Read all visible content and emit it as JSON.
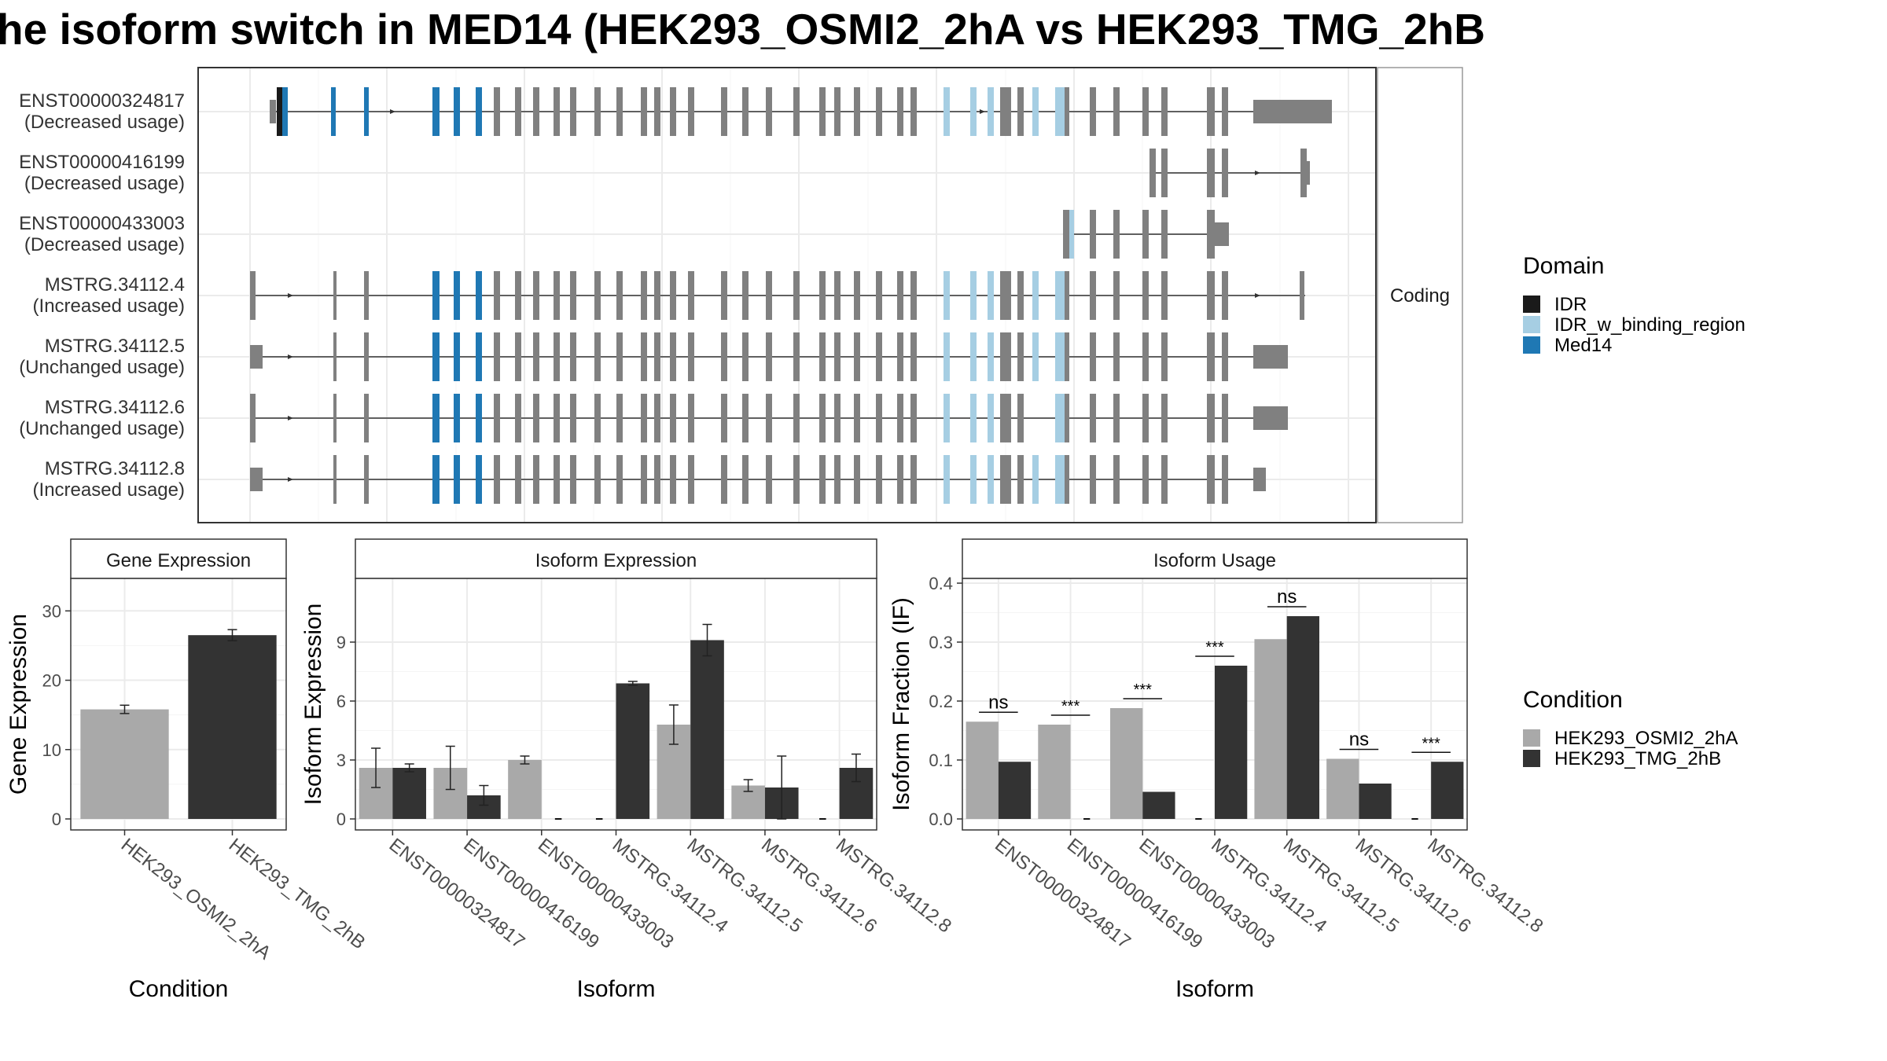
{
  "title": "he isoform switch in MED14 (HEK293_OSMI2_2hA vs HEK293_TMG_2hB",
  "colors": {
    "IDR": "#1a1a1a",
    "IDR_w_binding_region": "#a6cee3",
    "Med14": "#1f78b4",
    "noncoding": "#808080",
    "cond1": "#a9a9a9",
    "cond2": "#333333"
  },
  "domain_legend": {
    "title": "Domain",
    "items": [
      {
        "name": "IDR",
        "color": "#1a1a1a"
      },
      {
        "name": "IDR_w_binding_region",
        "color": "#a6cee3"
      },
      {
        "name": "Med14",
        "color": "#1f78b4"
      }
    ]
  },
  "condition_legend": {
    "title": "Condition",
    "items": [
      {
        "name": "HEK293_OSMI2_2hA",
        "color": "#a9a9a9"
      },
      {
        "name": "HEK293_TMG_2hB",
        "color": "#333333"
      }
    ]
  },
  "structure": {
    "strip_label": "Coding",
    "transcripts": [
      {
        "id": "ENST00000324817",
        "usage": "(Decreased usage)"
      },
      {
        "id": "ENST00000416199",
        "usage": "(Decreased usage)"
      },
      {
        "id": "ENST00000433003",
        "usage": "(Decreased usage)"
      },
      {
        "id": "MSTRG.34112.4",
        "usage": "(Increased usage)"
      },
      {
        "id": "MSTRG.34112.5",
        "usage": "(Unchanged usage)"
      },
      {
        "id": "MSTRG.34112.6",
        "usage": "(Unchanged usage)"
      },
      {
        "id": "MSTRG.34112.8",
        "usage": "(Increased usage)"
      }
    ]
  },
  "chart_data": [
    {
      "type": "bar",
      "title": "Gene Expression",
      "xlabel": "Condition",
      "ylabel": "Gene Expression",
      "categories": [
        "HEK293_OSMI2_2hA",
        "HEK293_TMG_2hB"
      ],
      "values": [
        15.8,
        26.5
      ],
      "error": [
        0.6,
        0.8
      ],
      "ylim": [
        0,
        34
      ],
      "yticks": [
        0,
        10,
        20,
        30
      ]
    },
    {
      "type": "bar",
      "title": "Isoform Expression",
      "xlabel": "Isoform",
      "ylabel": "Isoform Expression",
      "categories": [
        "ENST00000324817",
        "ENST00000416199",
        "ENST00000433003",
        "MSTRG.34112.4",
        "MSTRG.34112.5",
        "MSTRG.34112.6",
        "MSTRG.34112.8"
      ],
      "series": [
        {
          "name": "HEK293_OSMI2_2hA",
          "values": [
            2.6,
            2.6,
            3.0,
            0,
            4.8,
            1.7,
            0
          ],
          "error": [
            1.0,
            1.1,
            0.2,
            0,
            1.0,
            0.3,
            0
          ]
        },
        {
          "name": "HEK293_TMG_2hB",
          "values": [
            2.6,
            1.2,
            0,
            6.9,
            9.1,
            1.6,
            2.6
          ],
          "error": [
            0.2,
            0.5,
            0,
            0.1,
            0.8,
            1.6,
            0.7
          ]
        }
      ],
      "ylim": [
        0,
        12
      ],
      "yticks": [
        0,
        3,
        6,
        9
      ]
    },
    {
      "type": "bar",
      "title": "Isoform Usage",
      "xlabel": "Isoform",
      "ylabel": "Isoform Fraction (IF)",
      "categories": [
        "ENST00000324817",
        "ENST00000416199",
        "ENST00000433003",
        "MSTRG.34112.4",
        "MSTRG.34112.5",
        "MSTRG.34112.6",
        "MSTRG.34112.8"
      ],
      "series": [
        {
          "name": "HEK293_OSMI2_2hA",
          "values": [
            0.165,
            0.16,
            0.188,
            0,
            0.305,
            0.102,
            0
          ]
        },
        {
          "name": "HEK293_TMG_2hB",
          "values": [
            0.097,
            0,
            0.046,
            0.26,
            0.344,
            0.06,
            0.097
          ]
        }
      ],
      "significance": [
        "ns",
        "***",
        "***",
        "***",
        "ns",
        "ns",
        "***"
      ],
      "ylim": [
        0,
        0.4
      ],
      "yticks": [
        0.0,
        0.1,
        0.2,
        0.3,
        0.4
      ]
    }
  ]
}
